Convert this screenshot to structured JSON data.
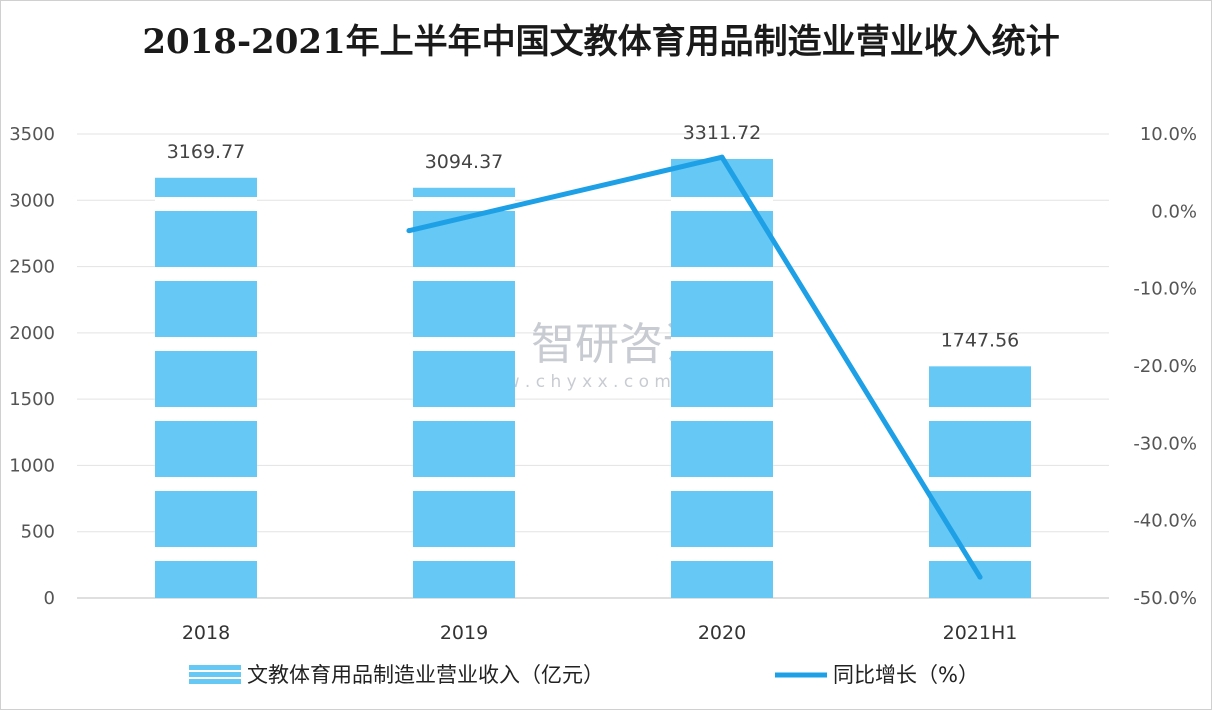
{
  "chart_data": {
    "type": "bar+line",
    "title": "2018-2021年上半年中国文教体育用品制造业营业收入统计",
    "categories": [
      "2018",
      "2019",
      "2020",
      "2021H1"
    ],
    "series": [
      {
        "name": "文教体育用品制造业营业收入（亿元）",
        "type": "bar",
        "axis": "left",
        "values": [
          3169.77,
          3094.37,
          3311.72,
          1747.56
        ],
        "labels": [
          "3169.77",
          "3094.37",
          "3311.72",
          "1747.56"
        ],
        "color": "#66c8f4"
      },
      {
        "name": "同比增长（%）",
        "type": "line",
        "axis": "right",
        "values": [
          null,
          -2.5,
          7.0,
          -47.3
        ],
        "color": "#1ea0e6"
      }
    ],
    "y_left": {
      "ylim": [
        0,
        3500
      ],
      "ticks": [
        0,
        500,
        1000,
        1500,
        2000,
        2500,
        3000,
        3500
      ],
      "tick_labels": [
        "0",
        "500",
        "1000",
        "1500",
        "2000",
        "2500",
        "3000",
        "3500"
      ]
    },
    "y_right": {
      "ylim": [
        -50,
        10
      ],
      "ticks": [
        -50,
        -40,
        -30,
        -20,
        -10,
        0,
        10
      ],
      "tick_labels": [
        "-50.0%",
        "-40.0%",
        "-30.0%",
        "-20.0%",
        "-10.0%",
        "0.0%",
        "10.0%"
      ]
    },
    "grid": true,
    "legend": "bottom"
  },
  "watermark": {
    "brand": "智研咨询",
    "url": "w w w . c h y x x . c o m"
  }
}
